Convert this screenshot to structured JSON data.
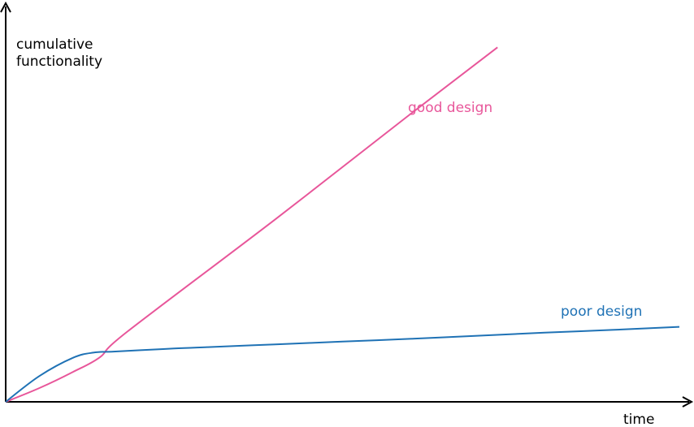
{
  "chart_data": {
    "type": "line",
    "title": "",
    "xlabel": "time",
    "ylabel_lines": [
      "cumulative",
      "functionality"
    ],
    "tick_labels": "none",
    "grid": false,
    "legend": "none (series labelled inline)",
    "xlim": [
      0,
      100
    ],
    "ylim": [
      0,
      100
    ],
    "series": [
      {
        "name": "good design",
        "color": "#e8569a",
        "x": [
          0,
          5,
          10,
          14,
          18,
          40,
          60,
          73
        ],
        "y": [
          0,
          4,
          8.7,
          13,
          20.3,
          53,
          83.5,
          103
        ]
      },
      {
        "name": "poor design",
        "color": "#1f72b5",
        "x": [
          0,
          5,
          10,
          13,
          16,
          20,
          25,
          30,
          40,
          50,
          60,
          70,
          80,
          90,
          100
        ],
        "y": [
          0,
          7.5,
          12.8,
          14.3,
          14.6,
          15,
          15.5,
          15.9,
          16.7,
          17.5,
          18.3,
          19.2,
          20.1,
          20.9,
          21.8
        ]
      }
    ]
  }
}
